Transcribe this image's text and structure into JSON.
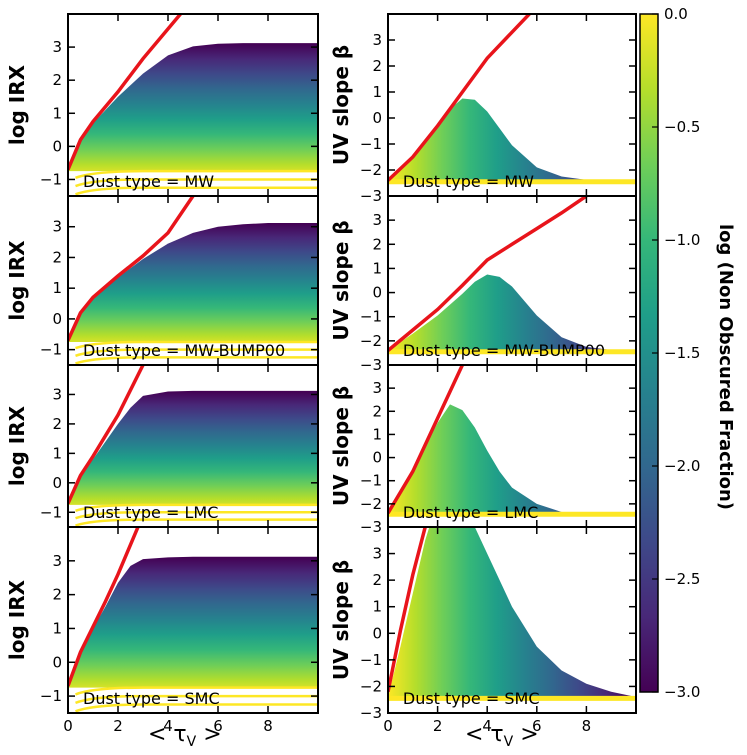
{
  "colors": {
    "line": "#e8141b",
    "viridis": [
      "#440154",
      "#482878",
      "#3e4989",
      "#31688e",
      "#26828e",
      "#1f9e89",
      "#35b779",
      "#6ece58",
      "#b5de2b",
      "#fde725"
    ]
  },
  "shared": {
    "xlabel": "< τ",
    "xlabel_sub": "V",
    "xlabel_end": " >",
    "colorbar_label": "log (Non Obscured Fraction)",
    "colorbar_ticks": [
      "0.0",
      "−0.5",
      "−1.0",
      "−1.5",
      "−2.0",
      "−2.5",
      "−3.0"
    ]
  },
  "chart_data": [
    {
      "type": "area",
      "panel": "left",
      "ylabel": "log IRX",
      "annotation": "Dust type = MW",
      "xlim": [
        0,
        10
      ],
      "ylim": [
        -1.5,
        4
      ],
      "xticks": [
        0,
        2,
        4,
        6,
        8
      ],
      "yticks": [
        -1,
        0,
        1,
        2,
        3
      ],
      "envelope_x": [
        0,
        0.5,
        1,
        2,
        3,
        4,
        5,
        6,
        7,
        8,
        9,
        10
      ],
      "envelope_y": [
        -0.7,
        0.2,
        0.7,
        1.5,
        2.2,
        2.75,
        3.02,
        3.1,
        3.12,
        3.12,
        3.12,
        3.12
      ],
      "line_x": [
        0,
        0.5,
        1,
        2,
        3,
        4.5
      ],
      "line_y": [
        -0.7,
        0.2,
        0.75,
        1.65,
        2.65,
        4.0
      ],
      "floor_y": [
        -0.75,
        -0.55
      ]
    },
    {
      "type": "area",
      "panel": "right",
      "ylabel": "UV slope β",
      "annotation": "Dust type = MW",
      "xlim": [
        0,
        10
      ],
      "ylim": [
        -3,
        4
      ],
      "xticks": [
        0,
        2,
        4,
        6,
        8
      ],
      "yticks": [
        -3,
        -2,
        -1,
        0,
        1,
        2,
        3
      ],
      "envelope_x": [
        0,
        0.5,
        1,
        1.5,
        2,
        2.5,
        3,
        3.5,
        4,
        4.5,
        5,
        6,
        7,
        8,
        9,
        10
      ],
      "envelope_y": [
        -2.4,
        -1.95,
        -1.45,
        -0.9,
        -0.3,
        0.35,
        0.75,
        0.7,
        0.25,
        -0.4,
        -1.05,
        -1.9,
        -2.25,
        -2.38,
        -2.4,
        -2.4
      ],
      "line_x": [
        0,
        1,
        2,
        3,
        4,
        5,
        6,
        7
      ],
      "line_y": [
        -2.4,
        -1.5,
        -0.3,
        1.0,
        2.3,
        3.3,
        4.3,
        5.2
      ],
      "floor_y": [
        -2.4,
        -2.4
      ]
    },
    {
      "type": "area",
      "panel": "left",
      "ylabel": "log IRX",
      "annotation": "Dust type = MW-BUMP00",
      "xlim": [
        0,
        10
      ],
      "ylim": [
        -1.5,
        4
      ],
      "xticks": [
        0,
        2,
        4,
        6,
        8
      ],
      "yticks": [
        -1,
        0,
        1,
        2,
        3
      ],
      "envelope_x": [
        0,
        0.5,
        1,
        2,
        3,
        4,
        5,
        6,
        7,
        8,
        9,
        10
      ],
      "envelope_y": [
        -0.7,
        0.2,
        0.65,
        1.35,
        1.95,
        2.45,
        2.8,
        3.0,
        3.08,
        3.12,
        3.12,
        3.12
      ],
      "line_x": [
        0,
        0.5,
        1,
        2,
        3,
        4,
        5
      ],
      "line_y": [
        -0.7,
        0.2,
        0.7,
        1.4,
        2.05,
        2.8,
        4.0
      ],
      "floor_y": [
        -0.75,
        -0.55
      ]
    },
    {
      "type": "area",
      "panel": "right",
      "ylabel": "UV slope β",
      "annotation": "Dust type = MW-BUMP00",
      "xlim": [
        0,
        10
      ],
      "ylim": [
        -3,
        4
      ],
      "xticks": [
        0,
        2,
        4,
        6,
        8
      ],
      "yticks": [
        -3,
        -2,
        -1,
        0,
        1,
        2,
        3
      ],
      "envelope_x": [
        0,
        0.5,
        1,
        2,
        3,
        3.5,
        4,
        4.5,
        5,
        5.5,
        6,
        7,
        8,
        9,
        10
      ],
      "envelope_y": [
        -2.4,
        -2.05,
        -1.7,
        -0.95,
        -0.05,
        0.45,
        0.75,
        0.65,
        0.25,
        -0.35,
        -0.95,
        -1.85,
        -2.25,
        -2.38,
        -2.4
      ],
      "line_x": [
        0,
        1,
        2,
        3,
        4,
        5,
        6,
        7,
        8
      ],
      "line_y": [
        -2.4,
        -1.55,
        -0.7,
        0.3,
        1.35,
        2.0,
        2.65,
        3.3,
        4.0
      ],
      "floor_y": [
        -2.4,
        -2.4
      ]
    },
    {
      "type": "area",
      "panel": "left",
      "ylabel": "log IRX",
      "annotation": "Dust type = LMC",
      "xlim": [
        0,
        10
      ],
      "ylim": [
        -1.5,
        4
      ],
      "xticks": [
        0,
        2,
        4,
        6,
        8
      ],
      "yticks": [
        -1,
        0,
        1,
        2,
        3
      ],
      "envelope_x": [
        0,
        0.5,
        1,
        1.5,
        2,
        2.5,
        3,
        4,
        5,
        6,
        8,
        10
      ],
      "envelope_y": [
        -0.7,
        0.2,
        0.8,
        1.4,
        2.0,
        2.55,
        2.95,
        3.1,
        3.12,
        3.12,
        3.12,
        3.12
      ],
      "line_x": [
        0,
        0.5,
        1,
        2,
        3
      ],
      "line_y": [
        -0.7,
        0.25,
        0.9,
        2.3,
        4.0
      ],
      "floor_y": [
        -0.75,
        -0.55
      ]
    },
    {
      "type": "area",
      "panel": "right",
      "ylabel": "UV slope β",
      "annotation": "Dust type = LMC",
      "xlim": [
        0,
        10
      ],
      "ylim": [
        -3,
        4
      ],
      "xticks": [
        0,
        2,
        4,
        6,
        8
      ],
      "yticks": [
        -3,
        -2,
        -1,
        0,
        1,
        2,
        3
      ],
      "envelope_x": [
        0,
        0.5,
        1,
        1.5,
        2,
        2.5,
        3,
        3.5,
        4,
        4.5,
        5,
        6,
        7,
        8,
        9,
        10
      ],
      "envelope_y": [
        -2.4,
        -1.6,
        -0.6,
        0.5,
        1.5,
        2.3,
        2.05,
        1.3,
        0.3,
        -0.6,
        -1.3,
        -2.0,
        -2.35,
        -2.4,
        -2.4,
        -2.4
      ],
      "line_x": [
        0,
        1,
        2,
        3
      ],
      "line_y": [
        -2.4,
        -0.6,
        1.7,
        4.0
      ],
      "floor_y": [
        -2.4,
        -2.4
      ]
    },
    {
      "type": "area",
      "panel": "left",
      "ylabel": "log IRX",
      "annotation": "Dust type = SMC",
      "xlim": [
        0,
        10
      ],
      "ylim": [
        -1.5,
        4
      ],
      "xticks": [
        0,
        2,
        4,
        6,
        8
      ],
      "yticks": [
        -1,
        0,
        1,
        2,
        3
      ],
      "envelope_x": [
        0,
        0.5,
        1,
        1.5,
        2,
        2.5,
        3,
        4,
        5,
        6,
        8,
        10
      ],
      "envelope_y": [
        -0.7,
        0.3,
        1.0,
        1.65,
        2.35,
        2.85,
        3.05,
        3.1,
        3.12,
        3.12,
        3.12,
        3.12
      ],
      "line_x": [
        0,
        0.5,
        1,
        1.5,
        2,
        2.8
      ],
      "line_y": [
        -0.7,
        0.3,
        1.05,
        1.8,
        2.6,
        4.0
      ],
      "floor_y": [
        -0.75,
        -0.55
      ]
    },
    {
      "type": "area",
      "panel": "right",
      "ylabel": "UV slope β",
      "annotation": "Dust type = SMC",
      "xlim": [
        0,
        10
      ],
      "ylim": [
        -3,
        4
      ],
      "xticks": [
        0,
        2,
        4,
        6,
        8
      ],
      "yticks": [
        -3,
        -2,
        -1,
        0,
        1,
        2,
        3
      ],
      "envelope_x": [
        0,
        0.5,
        1,
        1.5,
        2,
        2.5,
        3,
        4,
        5,
        6,
        7,
        8,
        9,
        10
      ],
      "envelope_y": [
        -2.4,
        -0.5,
        1.5,
        3.5,
        5.0,
        5.3,
        5.0,
        3.0,
        1.0,
        -0.5,
        -1.4,
        -1.9,
        -2.2,
        -2.4
      ],
      "line_x": [
        0,
        0.5,
        1,
        1.5
      ],
      "line_y": [
        -2.2,
        0.1,
        2.2,
        4.0
      ],
      "floor_y": [
        -2.4,
        -2.4
      ]
    }
  ]
}
